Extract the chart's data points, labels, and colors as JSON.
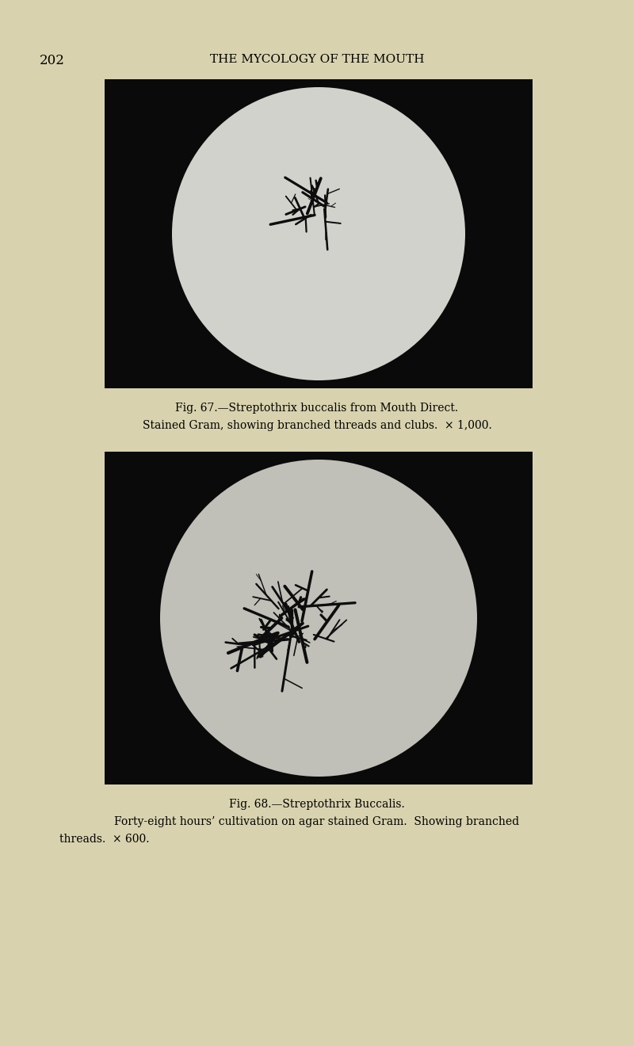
{
  "bg_color": "#d8d3ae",
  "page_number": "202",
  "header_text": "THE MYCOLOGY OF THE MOUTH",
  "header_fontsize": 11,
  "page_num_fontsize": 12,
  "fig1_caption_line1": "Fig. 67.—Streptothrix buccalis from Mouth Direct.",
  "fig1_caption_line2": "Stained Gram, showing branched threads and clubs.  × 1,000.",
  "fig1_caption_fontsize": 10,
  "fig2_caption_line1": "Fig. 68.—Streptothrix Buccalis.",
  "fig2_caption_line2": "Forty-eight hours’ cultivation on agar stained Gram.  Showing branched",
  "fig2_caption_line3": "threads.  × 600.",
  "fig2_caption_fontsize": 10,
  "black_bg": "#0a0a0a",
  "circle1_facecolor": "#d2d2cc",
  "circle2_facecolor": "#c0c0b8"
}
